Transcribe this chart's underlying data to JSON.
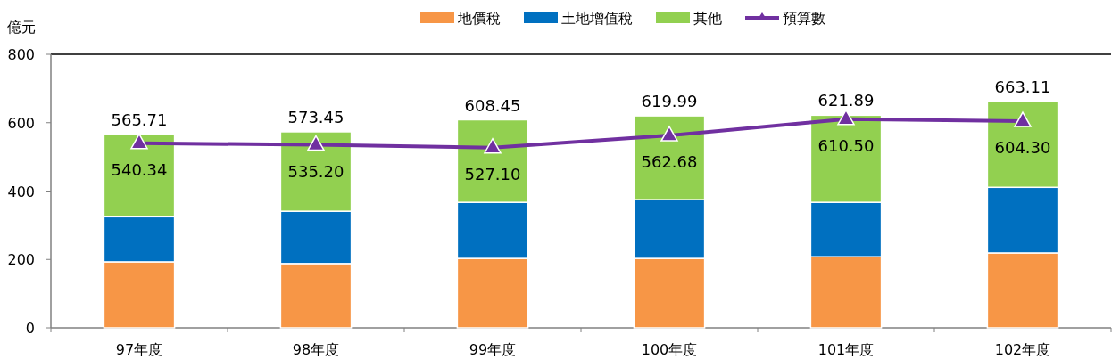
{
  "chart_data": {
    "type": "bar",
    "stacked": true,
    "ylabel": "億元",
    "legend": "top",
    "categories": [
      "97年度",
      "98年度",
      "99年度",
      "100年度",
      "101年度",
      "102年度"
    ],
    "ylim": [
      0,
      800
    ],
    "yticks": [
      0,
      200,
      400,
      600,
      800
    ],
    "series": [
      {
        "name": "地價稅",
        "color": "#f79646",
        "values": [
          193,
          188,
          203,
          203,
          208,
          219
        ]
      },
      {
        "name": "土地增值稅",
        "color": "#0070c0",
        "values": [
          132,
          153,
          164,
          172,
          159,
          192
        ]
      },
      {
        "name": "其他",
        "color": "#92d050",
        "values": [
          240.71,
          232.45,
          241.45,
          244.99,
          254.89,
          252.11
        ]
      },
      {
        "name": "預算數",
        "type": "line",
        "marker": "triangle",
        "color": "#7030a0",
        "values": [
          540.34,
          535.2,
          527.1,
          562.68,
          610.5,
          604.3
        ],
        "value_labels": [
          "540.34",
          "535.20",
          "527.10",
          "562.68",
          "610.50",
          "604.30"
        ]
      }
    ],
    "totals": [
      "565.71",
      "573.45",
      "608.45",
      "619.99",
      "621.89",
      "663.11"
    ]
  }
}
